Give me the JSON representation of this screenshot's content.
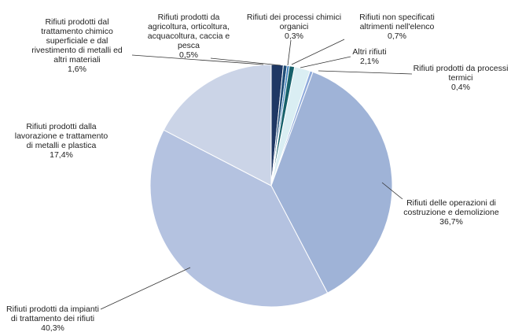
{
  "chart_data": {
    "type": "pie",
    "title": "",
    "legend": "none",
    "slices": [
      {
        "label": [
          "Rifiuti prodotti dal",
          "trattamento chimico",
          "superficiale e dal",
          "rivestimento di metalli ed",
          "altri materiali",
          "1,6%"
        ],
        "value": 1.6,
        "color": "#1f3864"
      },
      {
        "label": [
          "Rifiuti prodotti da",
          "agricoltura, orticoltura,",
          "acquacoltura, caccia e",
          "pesca",
          "0,5%"
        ],
        "value": 0.5,
        "color": "#1f4e79"
      },
      {
        "label": [
          "Rifiuti dei processi chimici",
          "organici",
          "0,3%"
        ],
        "value": 0.3,
        "color": "#2e75b6"
      },
      {
        "label": [
          "Rifiuti non specificati",
          "altrimenti nell'elenco",
          "0,7%"
        ],
        "value": 0.7,
        "color": "#17616b"
      },
      {
        "label": [
          "Altri rifiuti",
          "2,1%"
        ],
        "value": 2.1,
        "color": "#daeef3"
      },
      {
        "label": [
          "Rifiuti prodotti da processi",
          "termici",
          "0,4%"
        ],
        "value": 0.4,
        "color": "#8eaadb"
      },
      {
        "label": [
          "Rifiuti delle operazioni di",
          "costruzione e demolizione",
          "36,7%"
        ],
        "value": 36.7,
        "color": "#9fb3d7"
      },
      {
        "label": [
          "Rifiuti prodotti da impianti",
          "di trattamento dei rifiuti",
          "40,3%"
        ],
        "value": 40.3,
        "color": "#b4c2e0"
      },
      {
        "label": [
          "Rifiuti prodotti dalla",
          "lavorazione e trattamento",
          "di metalli e plastica",
          "17,4%"
        ],
        "value": 17.4,
        "color": "#cbd4e7"
      }
    ]
  }
}
